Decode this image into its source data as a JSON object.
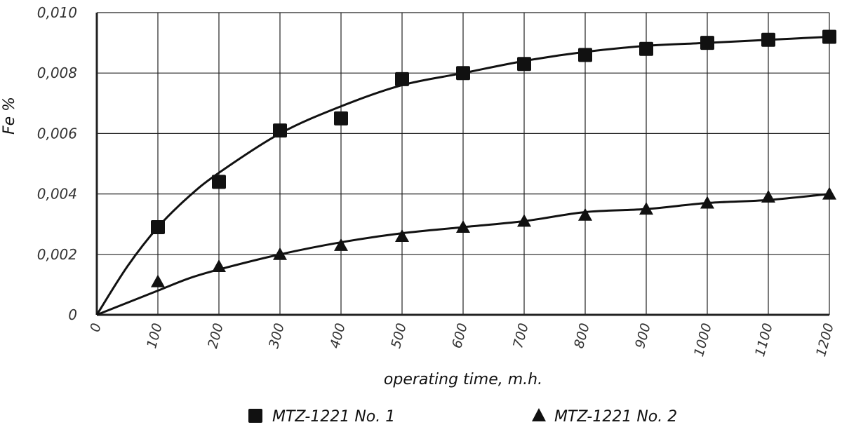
{
  "chart_data": {
    "type": "line",
    "title": "",
    "xlabel": "operating time, m.h.",
    "ylabel": "Fe %",
    "xlim": [
      0,
      1200
    ],
    "ylim": [
      0,
      0.01
    ],
    "x_ticks": [
      0,
      100,
      200,
      300,
      400,
      500,
      600,
      700,
      800,
      900,
      1000,
      1100,
      1200
    ],
    "x_tick_labels": [
      "0",
      "100",
      "200",
      "300",
      "400",
      "500",
      "600",
      "700",
      "800",
      "900",
      "1000",
      "1100",
      "1200"
    ],
    "y_ticks": [
      0,
      0.002,
      0.004,
      0.006,
      0.008,
      0.01
    ],
    "y_tick_labels": [
      "0",
      "0,002",
      "0,004",
      "0,006",
      "0,008",
      "0,010"
    ],
    "grid": true,
    "legend_position": "bottom",
    "series": [
      {
        "name": "MTZ-1221 No. 1",
        "marker": "square",
        "x": [
          100,
          200,
          300,
          400,
          500,
          600,
          700,
          800,
          900,
          1000,
          1100,
          1200
        ],
        "y": [
          0.0029,
          0.0044,
          0.0061,
          0.0065,
          0.0078,
          0.008,
          0.0083,
          0.0086,
          0.0088,
          0.009,
          0.0091,
          0.0092
        ],
        "fit_curve": {
          "x": [
            0,
            50,
            100,
            150,
            200,
            300,
            400,
            500,
            600,
            700,
            800,
            900,
            1000,
            1100,
            1200
          ],
          "y": [
            0,
            0.0016,
            0.0029,
            0.0039,
            0.0047,
            0.006,
            0.0069,
            0.0076,
            0.008,
            0.0084,
            0.0087,
            0.0089,
            0.009,
            0.0091,
            0.0092
          ]
        }
      },
      {
        "name": "MTZ-1221 No. 2",
        "marker": "triangle",
        "x": [
          100,
          200,
          300,
          400,
          500,
          600,
          700,
          800,
          900,
          1000,
          1100,
          1200
        ],
        "y": [
          0.0011,
          0.0016,
          0.002,
          0.0023,
          0.0026,
          0.0029,
          0.0031,
          0.0033,
          0.0035,
          0.0037,
          0.0039,
          0.004
        ],
        "fit_curve": {
          "x": [
            0,
            50,
            100,
            150,
            200,
            300,
            400,
            500,
            600,
            700,
            800,
            900,
            1000,
            1100,
            1200
          ],
          "y": [
            0,
            0.0004,
            0.0008,
            0.0012,
            0.0015,
            0.002,
            0.0024,
            0.0027,
            0.0029,
            0.0031,
            0.0034,
            0.0035,
            0.0037,
            0.0038,
            0.004
          ]
        }
      }
    ]
  },
  "colors": {
    "ink": "#111111",
    "grid": "#222222"
  }
}
